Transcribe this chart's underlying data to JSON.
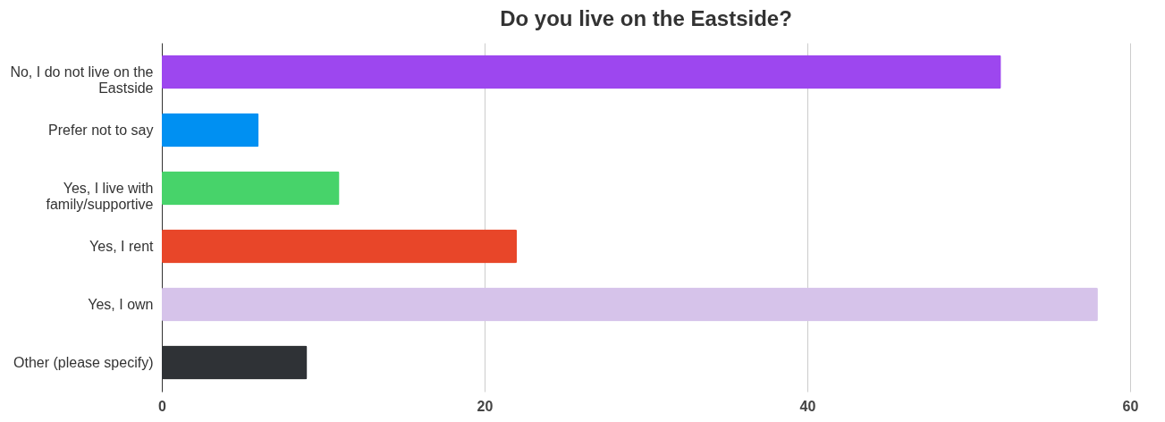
{
  "chart_data": {
    "type": "bar",
    "orientation": "horizontal",
    "title": "Do you live on the Eastside?",
    "categories": [
      "No, I do not live on the Eastside",
      "Prefer not to say",
      "Yes, I live with family/supportive",
      "Yes, I rent",
      "Yes, I own",
      "Other (please specify)"
    ],
    "values": [
      52,
      6,
      11,
      22,
      58,
      9
    ],
    "colors": [
      "#9d47ef",
      "#0090f2",
      "#47d36a",
      "#e84629",
      "#d6c3ea",
      "#2f3236"
    ],
    "xlim": [
      0,
      60
    ],
    "xticks": [
      0,
      20,
      40,
      60
    ],
    "grid": "x"
  }
}
